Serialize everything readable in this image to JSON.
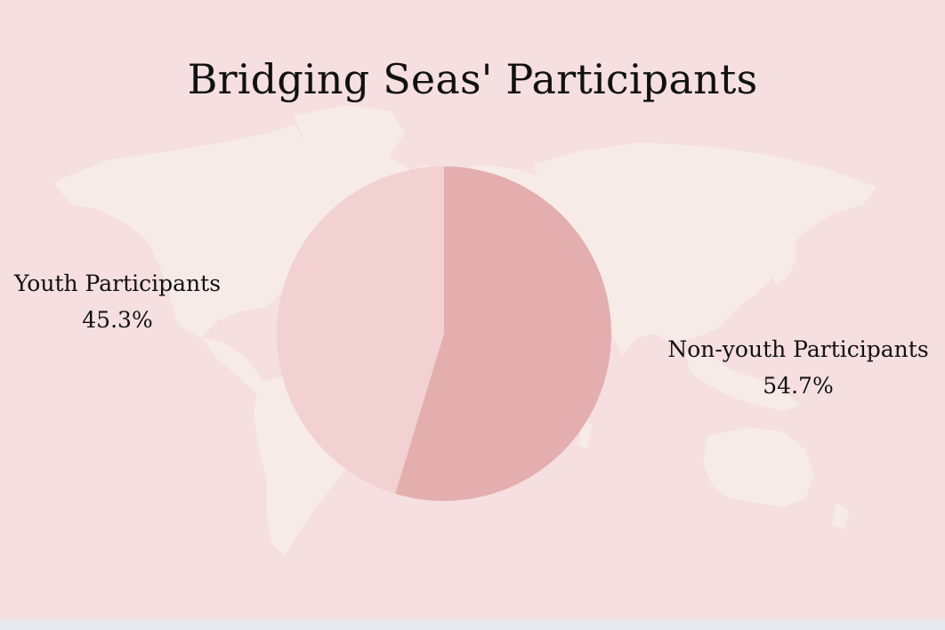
{
  "chart_data": {
    "type": "pie",
    "title": "Bridging Seas' Participants",
    "slices": [
      {
        "label": "Youth Participants",
        "value": 45.3,
        "value_label": "45.3%",
        "color": "#f1d1d2"
      },
      {
        "label": "Non-youth Participants",
        "value": 54.7,
        "value_label": "54.7%",
        "color": "#e4aeae"
      }
    ],
    "start_angle_deg": 0,
    "direction": "counterclockwise",
    "background_color": "#f5dfe0",
    "background_image": "world-map",
    "map_color": "#f7ebe8"
  }
}
